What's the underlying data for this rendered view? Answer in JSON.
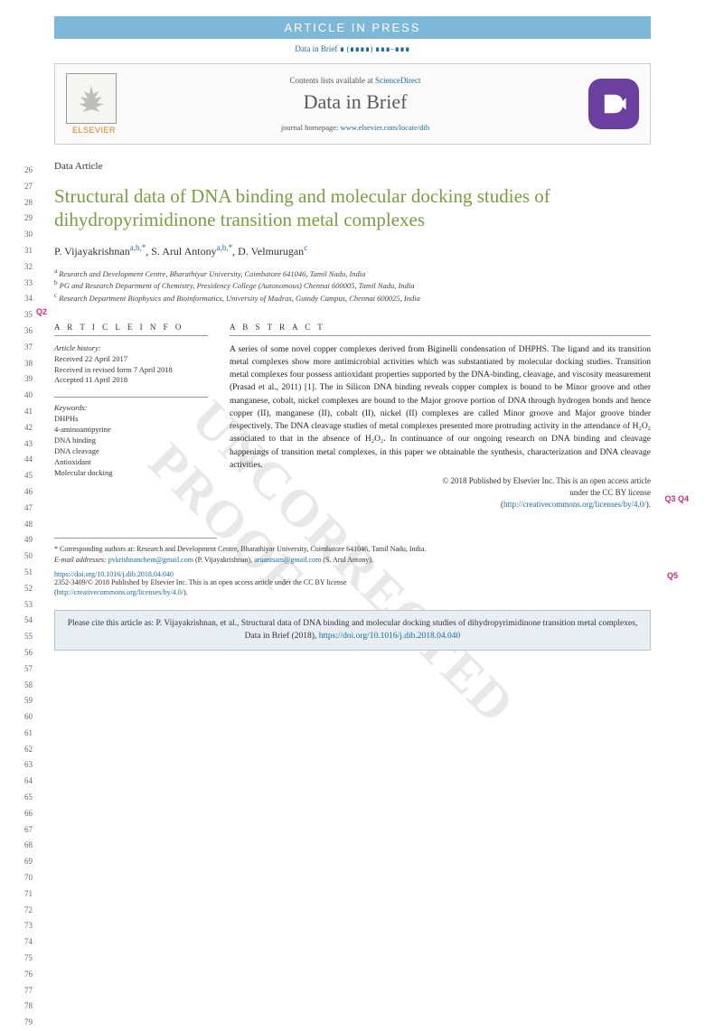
{
  "banner": "ARTICLE IN PRESS",
  "running_head": "Data in Brief ∎ (∎∎∎∎) ∎∎∎–∎∎∎",
  "header": {
    "contents": "Contents lists available at ",
    "contents_link": "ScienceDirect",
    "journal": "Data in Brief",
    "homepage_label": "journal homepage: ",
    "homepage_url": "www.elsevier.com/locate/dib",
    "elsevier": "ELSEVIER"
  },
  "article_type": "Data Article",
  "annotations": {
    "q2": "Q2",
    "q3q4": "Q3 Q4",
    "q5": "Q5"
  },
  "title": "Structural data of DNA binding and molecular docking studies of dihydropyrimidinone transition metal complexes",
  "authors_line": {
    "a1_name": "P. Vijayakrishnan",
    "a1_aff": "a,b,",
    "a1_star": "*",
    "a2_name": ", S. Arul Antony",
    "a2_aff": "a,b,",
    "a2_star": "*",
    "a3_name": ", D. Velmurugan",
    "a3_aff": "c"
  },
  "affiliations": {
    "a": "Research and Development Centre, Bharathiyar University, Coimbatore 641046, Tamil Nadu, India",
    "b": "PG and Research Department of Chemistry, Presidency College (Autonomous) Chennai 600005, Tamil Nadu, India",
    "c": "Research Department Biophysics and Bioinformatics, University of Madras, Guindy Campus, Chennai 600025, India"
  },
  "info_heading": "A R T I C L E  I N F O",
  "abstract_heading": "A B S T R A C T",
  "history": {
    "label": "Article history:",
    "received": "Received 22 April 2017",
    "revised": "Received in revised form 7 April 2018",
    "accepted": "Accepted 11 April 2018"
  },
  "keywords": {
    "label": "Keywords:",
    "items": [
      "DHPHs",
      "4-aminoantipyrine",
      "DNA binding",
      "DNA cleavage",
      "Antioxidant",
      "Molecular docking"
    ]
  },
  "abstract": "A series of some novel copper complexes derived from Biginelli condensation of DHPHS. The ligand and its transition metal complexes show more antimicrobial activities which was substantiated by molecular docking studies. Transition metal complexes four possess antioxidant properties supported by the DNA-binding, cleavage, and viscosity measurement (Prasad et al., 2011) [1]. The in Silicon DNA binding reveals copper complex is bound to be Minor groove and other manganese, cobalt, nickel complexes are bound to the Major groove portion of DNA through hydrogen bonds and hence copper (II), manganese (II), cobalt (II), nickel (II) complexes are called Minor groove and Major groove binder respectively. The DNA cleavage studies of metal complexes presented more protruding activity in the attendance of H₂O₂ associated to that in the absence of H₂O₂. In continuance of our ongoing research on DNA binding and cleavage happenings of transition metal complexes, in this paper we obtainable the synthesis, characterization and DNA cleavage activities.",
  "ref1": "[1]",
  "copyright": {
    "line1": "© 2018 Published by Elsevier Inc. This is an open access article",
    "line2": "under the CC BY license",
    "link": "http://creativecommons.org/licenses/by/4.0/"
  },
  "footnotes": {
    "corresp_label": "* Corresponding authors at: Research and Development Centre, Bharathiyar University, Coimbatore 641046, Tamil Nadu, India.",
    "email_label": "E-mail addresses: ",
    "email1": "pvkrishnanchem@gmail.com",
    "email1_who": " (P. Vijayakrishnan), ",
    "email2": "aruantsam@gmail.com",
    "email2_who": " (S. Arul Antony)."
  },
  "doi": "https://doi.org/10.1016/j.dib.2018.04.040",
  "license_footer": {
    "issn": "2352-3409/",
    "text": "© 2018 Published by Elsevier Inc. This is an open access article under the CC BY license",
    "link": "http://creativecommons.org/licenses/by/4.0/"
  },
  "cite_box": {
    "text": "Please cite this article as: P. Vijayakrishnan, et al., Structural data of DNA binding and molecular docking studies of dihydropyrimidinone transition metal complexes, Data in Brief (2018), ",
    "link": "https://doi.org/10.1016/j.dib.2018.04.040"
  },
  "watermark": "UNCORRECTED PROOF",
  "line_numbers": {
    "start": 26,
    "end": 79
  },
  "colors": {
    "banner_bg": "#7db8d8",
    "link": "#1a6ba8",
    "title": "#7a9e3f",
    "elsevier": "#e67817",
    "annotation": "#d4297e",
    "dib_logo": "#6b3fa0",
    "cite_bg": "#e8eef2",
    "watermark": "#e8e8e8"
  }
}
